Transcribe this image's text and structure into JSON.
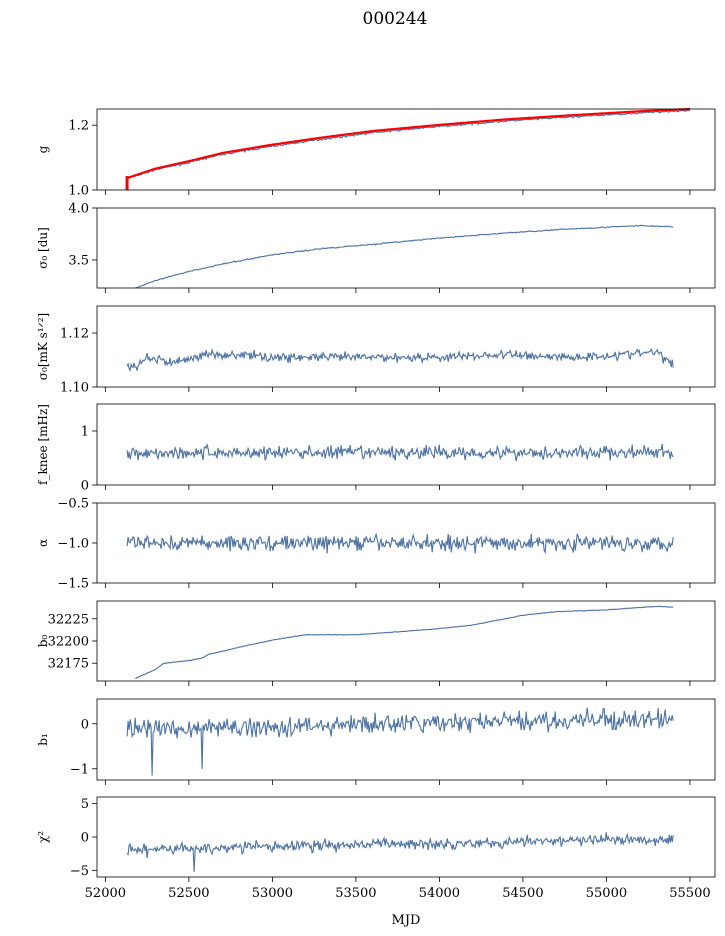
{
  "chart_data": {
    "type": "line",
    "title": "000244",
    "xlabel": "MJD",
    "xlim": [
      51950,
      55650
    ],
    "xticks": [
      52000,
      52500,
      53000,
      53500,
      54000,
      54500,
      55000,
      55500
    ],
    "xtick_labels": [
      "52000",
      "52500",
      "53000",
      "53500",
      "54000",
      "54500",
      "55000",
      "55500"
    ],
    "line_color": "#4c72a4",
    "overlay_color": "#ff0000",
    "panels": [
      {
        "name": "g",
        "ylabel": "g",
        "ylim": [
          1.0,
          1.25
        ],
        "yticks": [
          1.0,
          1.2
        ],
        "ytick_labels": [
          "1.0",
          "1.2"
        ],
        "series": [
          {
            "style": "line",
            "color": "#4c72a4",
            "noise": 0.002,
            "x": [
              52130,
              52300,
              52500,
              52700,
              53000,
              53300,
              53600,
              54000,
              54400,
              54800,
              55200,
              55500
            ],
            "y": [
              1.035,
              1.063,
              1.085,
              1.11,
              1.135,
              1.157,
              1.177,
              1.196,
              1.213,
              1.226,
              1.238,
              1.246
            ]
          },
          {
            "style": "line",
            "color": "#ff0000",
            "width": 2.2,
            "x": [
              52130,
              52300,
              52500,
              52700,
              53000,
              53300,
              53600,
              54000,
              54400,
              54800,
              55200,
              55500
            ],
            "y": [
              1.037,
              1.066,
              1.089,
              1.114,
              1.14,
              1.162,
              1.182,
              1.201,
              1.218,
              1.231,
              1.243,
              1.25
            ]
          },
          {
            "style": "vline",
            "color": "#ff0000",
            "width": 3,
            "x": 52130,
            "y": [
              1.0,
              1.043
            ]
          }
        ]
      },
      {
        "name": "sigma0-du",
        "ylabel": "σ₀ [du]",
        "ylim": [
          3.23,
          4.0
        ],
        "yticks": [
          3.5,
          4.0
        ],
        "ytick_labels": [
          "3.5",
          "4.0"
        ],
        "series": [
          {
            "style": "line",
            "color": "#4c72a4",
            "noise": 0.004,
            "x": [
              52180,
              52300,
              52500,
              52700,
              53000,
              53300,
              53600,
              54000,
              54400,
              54800,
              55200,
              55400
            ],
            "y": [
              3.23,
              3.3,
              3.39,
              3.46,
              3.55,
              3.61,
              3.65,
              3.71,
              3.76,
              3.8,
              3.83,
              3.82
            ]
          }
        ]
      },
      {
        "name": "sigma0-mk",
        "ylabel": "σ₀[mK s¹ᐟ²]",
        "ylim": [
          1.1,
          1.13
        ],
        "yticks": [
          1.1,
          1.12
        ],
        "ytick_labels": [
          "1.10",
          "1.12"
        ],
        "series": [
          {
            "style": "line",
            "color": "#4c72a4",
            "noise": 0.0012,
            "x": [
              52130,
              52180,
              52250,
              52400,
              52600,
              52800,
              53000,
              53300,
              53600,
              54000,
              54400,
              54800,
              55100,
              55300,
              55400
            ],
            "y": [
              1.107,
              1.107,
              1.111,
              1.109,
              1.112,
              1.112,
              1.111,
              1.111,
              1.111,
              1.111,
              1.112,
              1.111,
              1.112,
              1.113,
              1.108
            ]
          }
        ]
      },
      {
        "name": "fknee",
        "ylabel": "f_knee [mHz]",
        "ylim": [
          0,
          1.5
        ],
        "yticks": [
          0,
          1
        ],
        "ytick_labels": [
          "0",
          "1"
        ],
        "series": [
          {
            "style": "line",
            "color": "#4c72a4",
            "noise": 0.09,
            "x": [
              52130,
              55400
            ],
            "y": [
              0.6,
              0.6
            ]
          }
        ]
      },
      {
        "name": "alpha",
        "ylabel": "α",
        "ylim": [
          -1.5,
          -0.5
        ],
        "yticks": [
          -1.5,
          -1.0,
          -0.5
        ],
        "ytick_labels": [
          "−1.5",
          "−1.0",
          "−0.5"
        ],
        "series": [
          {
            "style": "line",
            "color": "#4c72a4",
            "noise": 0.07,
            "x": [
              52130,
              55400
            ],
            "y": [
              -1.0,
              -1.0
            ]
          }
        ]
      },
      {
        "name": "b0",
        "ylabel": "b₀",
        "ylim": [
          32155,
          32245
        ],
        "yticks": [
          32175,
          32200,
          32225
        ],
        "ytick_labels": [
          "32175",
          "32200",
          "32225"
        ],
        "series": [
          {
            "style": "line",
            "color": "#4c72a4",
            "noise": 0.25,
            "x": [
              52180,
              52300,
              52350,
              52500,
              52580,
              52620,
              52800,
              53000,
              53200,
              53500,
              53800,
              54000,
              54200,
              54500,
              54700,
              55000,
              55300,
              55400
            ],
            "y": [
              32158,
              32168,
              32175,
              32178,
              32181,
              32185,
              32193,
              32201,
              32207,
              32207,
              32211,
              32214,
              32218,
              32229,
              32233,
              32235,
              32239,
              32238
            ]
          }
        ]
      },
      {
        "name": "b1",
        "ylabel": "b₁",
        "ylim": [
          -1.25,
          0.55
        ],
        "yticks": [
          -1,
          0
        ],
        "ytick_labels": [
          "−1",
          "0"
        ],
        "series": [
          {
            "style": "line",
            "color": "#4c72a4",
            "noise": 0.15,
            "spikes": [
              [
                52280,
                -1.15
              ],
              [
                52580,
                -1.0
              ]
            ],
            "x": [
              52130,
              52600,
              53200,
              53800,
              54400,
              55000,
              55400
            ],
            "y": [
              -0.1,
              -0.1,
              -0.05,
              0.0,
              0.05,
              0.08,
              0.1
            ]
          }
        ]
      },
      {
        "name": "chi2",
        "ylabel": "χ²",
        "ylim": [
          -6,
          6
        ],
        "yticks": [
          -5,
          0,
          5
        ],
        "ytick_labels": [
          "−5",
          "0",
          "5"
        ],
        "series": [
          {
            "style": "line",
            "color": "#4c72a4",
            "noise": 0.6,
            "spikes": [
              [
                52530,
                -5.2
              ]
            ],
            "x": [
              52130,
              52600,
              53200,
              53800,
              54400,
              55000,
              55400
            ],
            "y": [
              -2.0,
              -1.7,
              -1.3,
              -1.0,
              -0.8,
              -0.4,
              -0.3
            ]
          }
        ]
      }
    ]
  }
}
